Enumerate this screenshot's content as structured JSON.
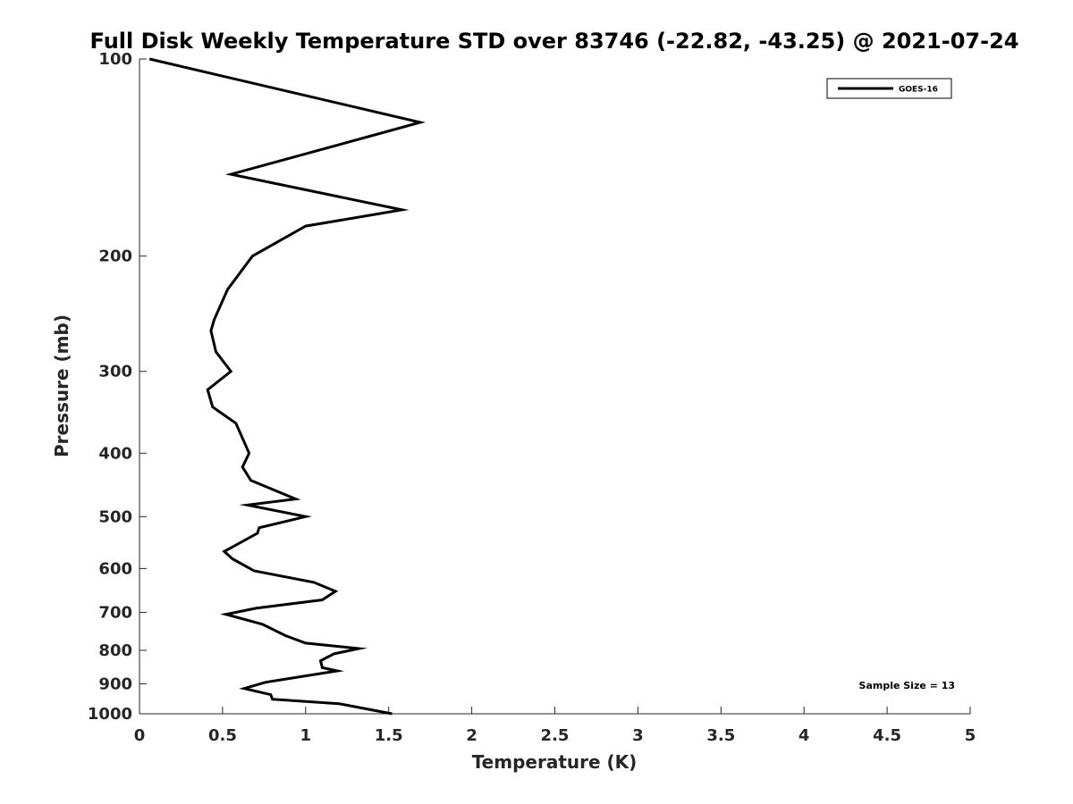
{
  "chart_data": {
    "type": "line",
    "title": "Full Disk Weekly Temperature STD over 83746 (-22.82, -43.25) @ 2021-07-24",
    "xlabel": "Temperature (K)",
    "ylabel": "Pressure (mb)",
    "xlim": [
      0,
      5
    ],
    "ylim": [
      1000,
      100
    ],
    "yscale": "log",
    "y_reversed": true,
    "grid": false,
    "legend_position": "top-right",
    "xticks": [
      0,
      0.5,
      1,
      1.5,
      2,
      2.5,
      3,
      3.5,
      4,
      4.5,
      5
    ],
    "xtick_labels": [
      "0",
      "0.5",
      "1",
      "1.5",
      "2",
      "2.5",
      "3",
      "3.5",
      "4",
      "4.5",
      "5"
    ],
    "yticks": [
      100,
      200,
      300,
      400,
      500,
      600,
      700,
      800,
      900,
      1000
    ],
    "ytick_labels": [
      "100",
      "200",
      "300",
      "400",
      "500",
      "600",
      "700",
      "800",
      "900",
      "1000"
    ],
    "annotation": "Sample Size = 13",
    "series": [
      {
        "name": "GOES-16",
        "color": "#000000",
        "points": [
          [
            0.06,
            100
          ],
          [
            1.69,
            125
          ],
          [
            0.55,
            150
          ],
          [
            1.58,
            170
          ],
          [
            1.0,
            180
          ],
          [
            0.68,
            200
          ],
          [
            0.53,
            225
          ],
          [
            0.45,
            250
          ],
          [
            0.43,
            260
          ],
          [
            0.46,
            280
          ],
          [
            0.55,
            300
          ],
          [
            0.41,
            320
          ],
          [
            0.44,
            340
          ],
          [
            0.58,
            360
          ],
          [
            0.66,
            400
          ],
          [
            0.62,
            420
          ],
          [
            0.67,
            440
          ],
          [
            0.94,
            470
          ],
          [
            0.65,
            480
          ],
          [
            1.0,
            500
          ],
          [
            0.72,
            520
          ],
          [
            0.71,
            530
          ],
          [
            0.51,
            565
          ],
          [
            0.56,
            580
          ],
          [
            0.69,
            605
          ],
          [
            1.05,
            630
          ],
          [
            1.18,
            650
          ],
          [
            1.1,
            670
          ],
          [
            0.7,
            690
          ],
          [
            0.52,
            705
          ],
          [
            0.74,
            730
          ],
          [
            0.88,
            760
          ],
          [
            1.0,
            780
          ],
          [
            1.32,
            795
          ],
          [
            1.17,
            810
          ],
          [
            1.09,
            830
          ],
          [
            1.1,
            850
          ],
          [
            1.19,
            860
          ],
          [
            0.76,
            895
          ],
          [
            0.63,
            915
          ],
          [
            0.79,
            935
          ],
          [
            0.8,
            950
          ],
          [
            1.2,
            965
          ],
          [
            1.52,
            1000
          ]
        ]
      }
    ]
  }
}
